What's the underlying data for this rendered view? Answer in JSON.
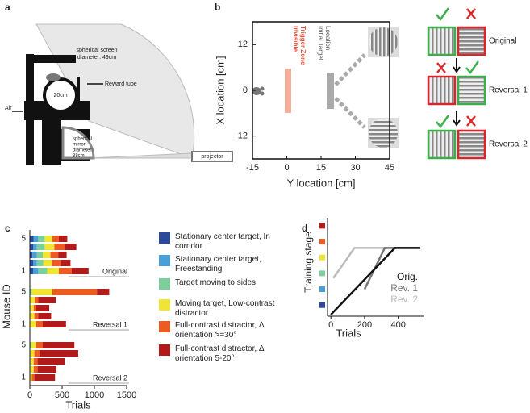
{
  "panel_labels": [
    "a",
    "b",
    "c",
    "d"
  ],
  "panel_a": {
    "screen_label": [
      "spherical screen",
      "diameter: 49cm"
    ],
    "reward_tube": "Reward tube",
    "ball": "20cm",
    "air": "Air",
    "mirror_label": [
      "spherical",
      "mirror",
      "diameter:",
      "38cm"
    ],
    "projector": "projector"
  },
  "chart_data": [
    {
      "type": "layout",
      "xlabel": "Y location [cm]",
      "ylabel": "X location [cm]",
      "xlim": [
        -15,
        45
      ],
      "xticks": [
        -15,
        0,
        15,
        30,
        45
      ],
      "ylim": [
        -18,
        18
      ],
      "yticks": [
        12,
        0,
        -12
      ],
      "trigger_label": [
        "Invisible",
        "Trigger Zone"
      ],
      "target_label": [
        "Initial Target",
        "Location"
      ],
      "conditions": [
        "Original",
        "Reversal 1",
        "Reversal 2"
      ]
    },
    {
      "type": "hbar",
      "stacked": true,
      "xlabel": "Trials",
      "ylabel": "Mouse ID",
      "xlim": [
        0,
        1500
      ],
      "xticks": [
        0,
        500,
        1000,
        1500
      ],
      "groups": [
        "Original",
        "Reversal 1",
        "Reversal 2"
      ],
      "categories": [
        "5",
        null,
        null,
        null,
        "1",
        "5",
        null,
        null,
        null,
        "1",
        "5",
        null,
        null,
        null,
        "1"
      ],
      "series": [
        {
          "name": "Stationary center target, In corridor",
          "color": "#2b4a9b",
          "values": [
            60,
            50,
            40,
            50,
            50,
            0,
            0,
            0,
            0,
            0,
            0,
            0,
            0,
            0,
            0
          ]
        },
        {
          "name": "Stationary center target, Freestanding",
          "color": "#4aa0d6",
          "values": [
            70,
            60,
            70,
            60,
            80,
            0,
            0,
            0,
            0,
            0,
            0,
            0,
            0,
            0,
            0
          ]
        },
        {
          "name": "Target moving to sides",
          "color": "#7ccf9c",
          "values": [
            100,
            120,
            90,
            100,
            140,
            30,
            0,
            0,
            0,
            0,
            20,
            10,
            10,
            10,
            0
          ]
        },
        {
          "name": "Moving target, Low-contrast distractor",
          "color": "#f0e532",
          "values": [
            120,
            150,
            120,
            130,
            180,
            320,
            80,
            60,
            70,
            100,
            80,
            60,
            50,
            50,
            30
          ]
        },
        {
          "name": "Full-contrast distractor, Δ orientation >=30°",
          "color": "#ee5a24",
          "values": [
            100,
            160,
            120,
            140,
            200,
            690,
            50,
            40,
            60,
            100,
            100,
            80,
            60,
            60,
            40
          ]
        },
        {
          "name": "Full-contrast distractor, Δ orientation 5-20°",
          "color": "#b31b1b",
          "values": [
            130,
            180,
            130,
            150,
            260,
            190,
            270,
            200,
            200,
            360,
            490,
            600,
            420,
            290,
            320
          ]
        }
      ]
    },
    {
      "type": "line",
      "xlabel": "Trials",
      "ylabel": "Training stage",
      "xlim": [
        -20,
        550
      ],
      "xticks": [
        0,
        200,
        400
      ],
      "ylim": [
        0.3,
        6.5
      ],
      "series": [
        {
          "name": "Orig.",
          "color": "#111111",
          "x": [
            0,
            380,
            530
          ],
          "y": [
            0.4,
            4.6,
            4.6
          ]
        },
        {
          "name": "Rev. 1",
          "color": "#777777",
          "x": [
            200,
            320,
            530
          ],
          "y": [
            2,
            4.6,
            4.6
          ]
        },
        {
          "name": "Rev. 2",
          "color": "#bbbbbb",
          "x": [
            15,
            140,
            530
          ],
          "y": [
            2.7,
            4.6,
            4.6
          ]
        }
      ]
    }
  ]
}
